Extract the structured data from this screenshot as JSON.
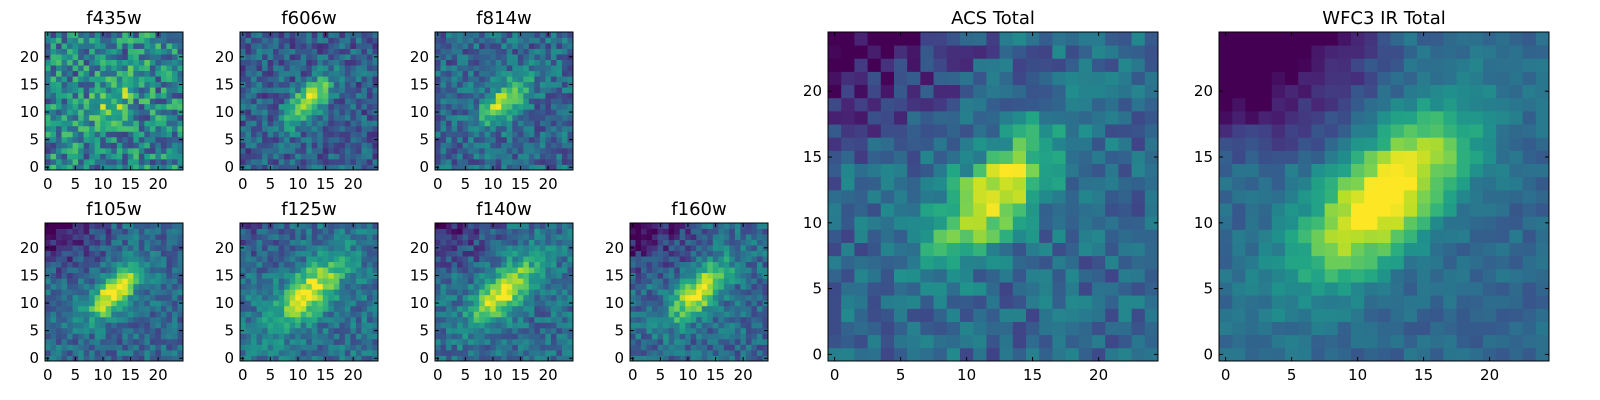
{
  "colormap": "viridis",
  "chart_data": [
    {
      "type": "heatmap",
      "title": "f435w",
      "size": 25,
      "xticks": [
        0,
        5,
        10,
        15,
        20
      ],
      "yticks": [
        0,
        5,
        10,
        15,
        20
      ],
      "xlim": [
        0,
        24
      ],
      "ylim": [
        0,
        24
      ]
    },
    {
      "type": "heatmap",
      "title": "f606w",
      "size": 25,
      "xticks": [
        0,
        5,
        10,
        15,
        20
      ],
      "yticks": [
        0,
        5,
        10,
        15,
        20
      ],
      "xlim": [
        0,
        24
      ],
      "ylim": [
        0,
        24
      ]
    },
    {
      "type": "heatmap",
      "title": "f814w",
      "size": 25,
      "xticks": [
        0,
        5,
        10,
        15,
        20
      ],
      "yticks": [
        0,
        5,
        10,
        15,
        20
      ],
      "xlim": [
        0,
        24
      ],
      "ylim": [
        0,
        24
      ]
    },
    {
      "type": "heatmap",
      "title": "f105w",
      "size": 25,
      "xticks": [
        0,
        5,
        10,
        15,
        20
      ],
      "yticks": [
        0,
        5,
        10,
        15,
        20
      ],
      "xlim": [
        0,
        24
      ],
      "ylim": [
        0,
        24
      ]
    },
    {
      "type": "heatmap",
      "title": "f125w",
      "size": 25,
      "xticks": [
        0,
        5,
        10,
        15,
        20
      ],
      "yticks": [
        0,
        5,
        10,
        15,
        20
      ],
      "xlim": [
        0,
        24
      ],
      "ylim": [
        0,
        24
      ]
    },
    {
      "type": "heatmap",
      "title": "f140w",
      "size": 25,
      "xticks": [
        0,
        5,
        10,
        15,
        20
      ],
      "yticks": [
        0,
        5,
        10,
        15,
        20
      ],
      "xlim": [
        0,
        24
      ],
      "ylim": [
        0,
        24
      ]
    },
    {
      "type": "heatmap",
      "title": "f160w",
      "size": 25,
      "xticks": [
        0,
        5,
        10,
        15,
        20
      ],
      "yticks": [
        0,
        5,
        10,
        15,
        20
      ],
      "xlim": [
        0,
        24
      ],
      "ylim": [
        0,
        24
      ]
    },
    {
      "type": "heatmap",
      "title": "ACS Total",
      "size": 25,
      "xticks": [
        0,
        5,
        10,
        15,
        20
      ],
      "yticks": [
        0,
        5,
        10,
        15,
        20
      ],
      "xlim": [
        0,
        24
      ],
      "ylim": [
        0,
        24
      ]
    },
    {
      "type": "heatmap",
      "title": "WFC3 IR Total",
      "size": 25,
      "xticks": [
        0,
        5,
        10,
        15,
        20
      ],
      "yticks": [
        0,
        5,
        10,
        15,
        20
      ],
      "xlim": [
        0,
        24
      ],
      "ylim": [
        0,
        24
      ]
    }
  ]
}
